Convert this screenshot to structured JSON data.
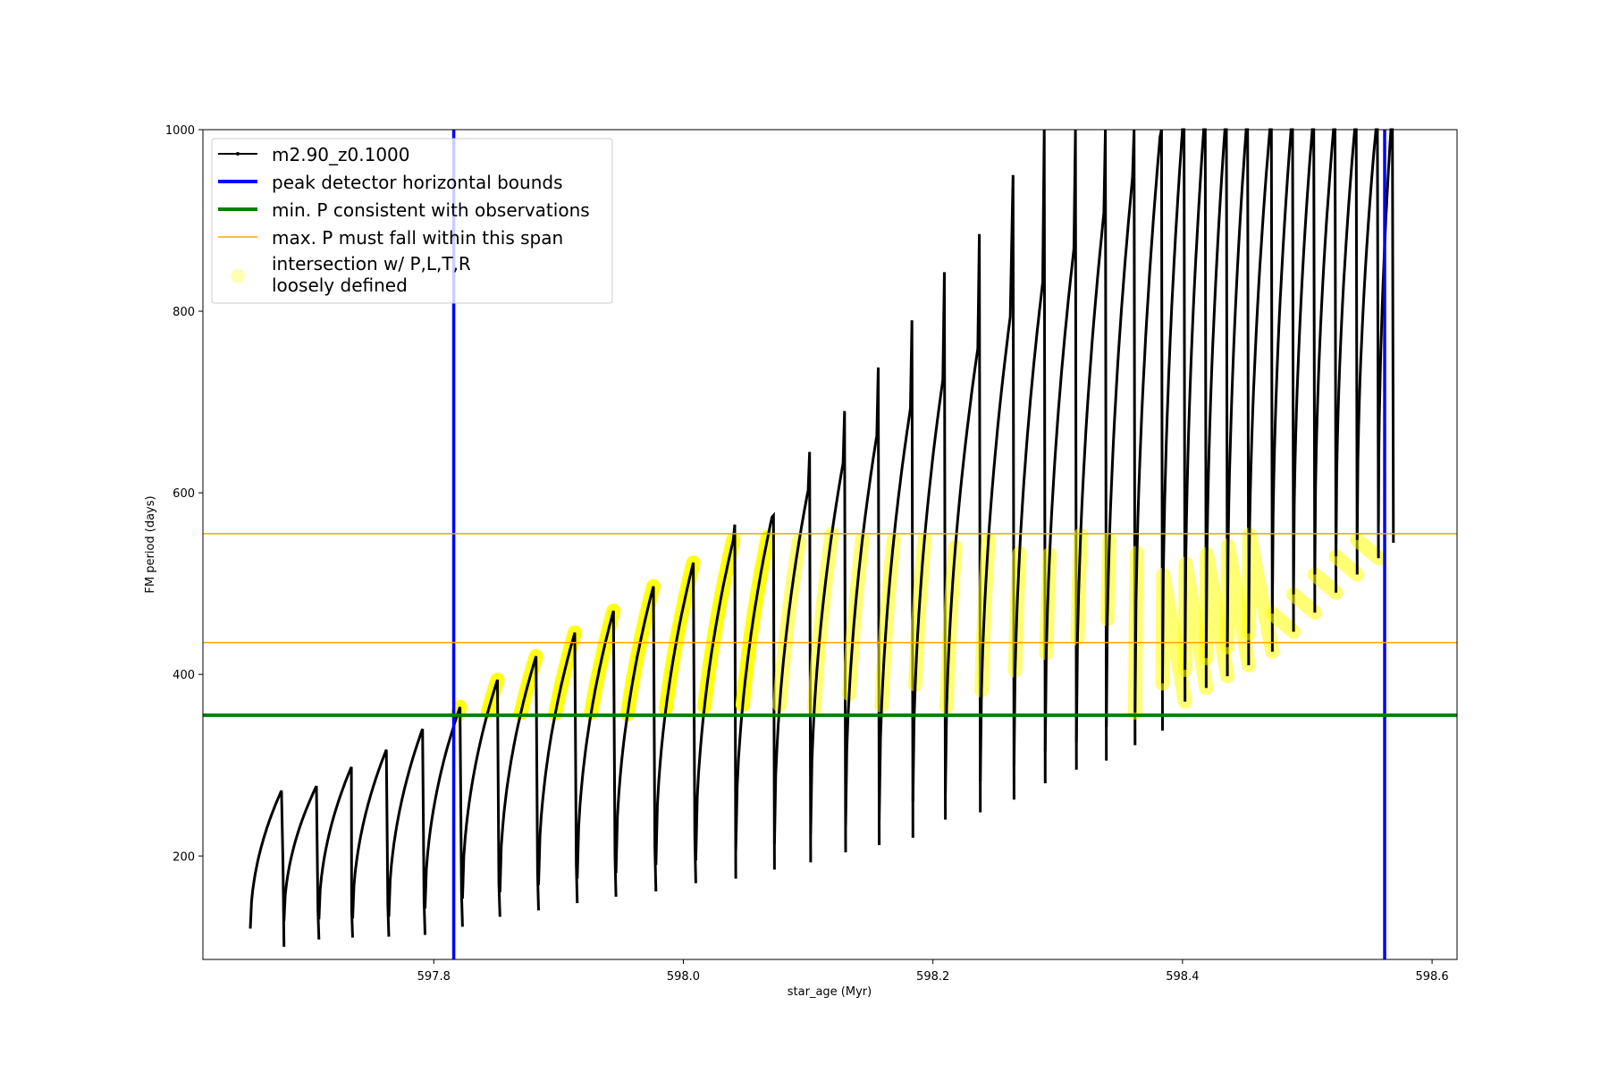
{
  "chart_data": {
    "type": "line",
    "title": "",
    "xlabel": "star_age (Myr)",
    "ylabel": "FM period (days)",
    "xlim": [
      597.615,
      598.62
    ],
    "ylim": [
      86,
      1000
    ],
    "xticks": [
      597.8,
      598.0,
      598.2,
      598.4,
      598.6
    ],
    "xtick_labels": [
      "597.8",
      "598.0",
      "598.2",
      "598.4",
      "598.6"
    ],
    "yticks": [
      200,
      400,
      600,
      800,
      1000
    ],
    "ytick_labels": [
      "200",
      "400",
      "600",
      "800",
      "1000"
    ],
    "grid": false,
    "legend_position": "top-left",
    "colors": {
      "model": "#000000",
      "bounds": "#0000ff",
      "min_period": "#008000",
      "max_period": "#ffa500",
      "intersection": "#ffff00"
    },
    "legend": [
      {
        "label": "m2.90_z0.1000",
        "kind": "line-marker",
        "color": "#000000"
      },
      {
        "label": "peak detector horizontal bounds",
        "kind": "line",
        "color": "#0000ff"
      },
      {
        "label": "min. P consistent with observations",
        "kind": "line",
        "color": "#008000"
      },
      {
        "label": "max. P must fall within this span",
        "kind": "line-thin",
        "color": "#ffa500"
      },
      {
        "label": "intersection w/ P,L,T,R",
        "label2": "loosely defined",
        "kind": "dot",
        "color": "#ffff00"
      }
    ],
    "vertical_bounds": [
      597.816,
      598.562
    ],
    "min_period": 355,
    "max_period_span": [
      435,
      555
    ],
    "cycles": [
      {
        "start": 597.653,
        "peak_x": 597.678,
        "peak": 272,
        "drop_x": 597.68,
        "min": 100,
        "spike": 190
      },
      {
        "start": 597.68,
        "peak_x": 597.706,
        "peak": 277,
        "drop_x": 597.708,
        "min": 108,
        "spike": 140
      },
      {
        "start": 597.708,
        "peak_x": 597.734,
        "peak": 298,
        "drop_x": 597.735,
        "min": 110,
        "spike": 140
      },
      {
        "start": 597.735,
        "peak_x": 597.762,
        "peak": 317,
        "drop_x": 597.764,
        "min": 111,
        "spike": 145
      },
      {
        "start": 597.764,
        "peak_x": 597.791,
        "peak": 340,
        "drop_x": 597.793,
        "min": 113,
        "spike": 150
      },
      {
        "start": 597.793,
        "peak_x": 597.821,
        "peak": 364,
        "drop_x": 597.823,
        "min": 122,
        "spike": 160
      },
      {
        "start": 597.823,
        "peak_x": 597.851,
        "peak": 394,
        "drop_x": 597.853,
        "min": 133,
        "spike": 170
      },
      {
        "start": 597.853,
        "peak_x": 597.882,
        "peak": 420,
        "drop_x": 597.884,
        "min": 140,
        "spike": 180
      },
      {
        "start": 597.884,
        "peak_x": 597.913,
        "peak": 446,
        "drop_x": 597.915,
        "min": 148,
        "spike": 190
      },
      {
        "start": 597.915,
        "peak_x": 597.944,
        "peak": 470,
        "drop_x": 597.946,
        "min": 155,
        "spike": 200
      },
      {
        "start": 597.946,
        "peak_x": 597.976,
        "peak": 497,
        "drop_x": 597.978,
        "min": 161,
        "spike": 210
      },
      {
        "start": 597.978,
        "peak_x": 598.008,
        "peak": 523,
        "drop_x": 598.01,
        "min": 170,
        "spike": 220
      },
      {
        "start": 598.01,
        "peak_x": 598.04,
        "peak": 548,
        "drop_x": 598.042,
        "min": 175,
        "spike": 565
      },
      {
        "start": 598.042,
        "peak_x": 598.071,
        "peak": 573,
        "drop_x": 598.073,
        "min": 185,
        "spike": 575
      },
      {
        "start": 598.073,
        "peak_x": 598.1,
        "peak": 603,
        "drop_x": 598.102,
        "min": 193,
        "spike": 645
      },
      {
        "start": 598.102,
        "peak_x": 598.128,
        "peak": 633,
        "drop_x": 598.13,
        "min": 204,
        "spike": 690
      },
      {
        "start": 598.13,
        "peak_x": 598.155,
        "peak": 663,
        "drop_x": 598.157,
        "min": 212,
        "spike": 738
      },
      {
        "start": 598.157,
        "peak_x": 598.182,
        "peak": 693,
        "drop_x": 598.184,
        "min": 220,
        "spike": 790
      },
      {
        "start": 598.184,
        "peak_x": 598.208,
        "peak": 725,
        "drop_x": 598.21,
        "min": 240,
        "spike": 843
      },
      {
        "start": 598.21,
        "peak_x": 598.236,
        "peak": 759,
        "drop_x": 598.238,
        "min": 248,
        "spike": 885
      },
      {
        "start": 598.238,
        "peak_x": 598.262,
        "peak": 794,
        "drop_x": 598.265,
        "min": 262,
        "spike": 950
      },
      {
        "start": 598.265,
        "peak_x": 598.288,
        "peak": 832,
        "drop_x": 598.29,
        "min": 280,
        "spike": 1000
      },
      {
        "start": 598.29,
        "peak_x": 598.313,
        "peak": 869,
        "drop_x": 598.315,
        "min": 295,
        "spike": 1000
      },
      {
        "start": 598.315,
        "peak_x": 598.337,
        "peak": 908,
        "drop_x": 598.339,
        "min": 305,
        "spike": 1000
      },
      {
        "start": 598.339,
        "peak_x": 598.36,
        "peak": 948,
        "drop_x": 598.362,
        "min": 322,
        "spike": 1000
      },
      {
        "start": 598.362,
        "peak_x": 598.382,
        "peak": 992,
        "drop_x": 598.384,
        "min": 338,
        "spike": 1000
      },
      {
        "start": 598.384,
        "peak_x": 598.4,
        "peak": 1000,
        "drop_x": 598.402,
        "min": 370,
        "spike": 1000
      },
      {
        "start": 598.402,
        "peak_x": 598.417,
        "peak": 1000,
        "drop_x": 598.419,
        "min": 385,
        "spike": 1000
      },
      {
        "start": 598.419,
        "peak_x": 598.434,
        "peak": 1000,
        "drop_x": 598.436,
        "min": 398,
        "spike": 1000
      },
      {
        "start": 598.436,
        "peak_x": 598.451,
        "peak": 1000,
        "drop_x": 598.453,
        "min": 410,
        "spike": 1000
      },
      {
        "start": 598.453,
        "peak_x": 598.47,
        "peak": 1000,
        "drop_x": 598.472,
        "min": 425,
        "spike": 1000
      },
      {
        "start": 598.472,
        "peak_x": 598.487,
        "peak": 1000,
        "drop_x": 598.489,
        "min": 447,
        "spike": 1000
      },
      {
        "start": 598.489,
        "peak_x": 598.504,
        "peak": 1000,
        "drop_x": 598.506,
        "min": 468,
        "spike": 1000
      },
      {
        "start": 598.506,
        "peak_x": 598.521,
        "peak": 1000,
        "drop_x": 598.523,
        "min": 490,
        "spike": 1000
      },
      {
        "start": 598.523,
        "peak_x": 598.538,
        "peak": 1000,
        "drop_x": 598.54,
        "min": 510,
        "spike": 1000
      },
      {
        "start": 598.54,
        "peak_x": 598.555,
        "peak": 1000,
        "drop_x": 598.557,
        "min": 528,
        "spike": 1000
      },
      {
        "start": 598.557,
        "peak_x": 598.567,
        "peak": 1000,
        "drop_x": 598.569,
        "min": 545,
        "spike": 1000
      }
    ]
  }
}
